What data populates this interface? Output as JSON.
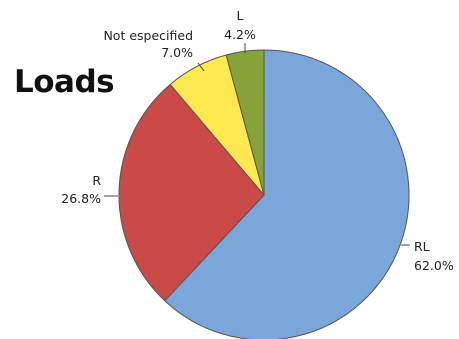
{
  "chart_data": {
    "type": "pie",
    "title": "Loads",
    "slices": [
      {
        "label": "RL",
        "value": 62.0,
        "pct_label": "62.0%",
        "color": "#7ba6d9"
      },
      {
        "label": "R",
        "value": 26.8,
        "pct_label": "26.8%",
        "color": "#c94a46"
      },
      {
        "label": "Not especified",
        "value": 7.0,
        "pct_label": "7.0%",
        "color": "#fde94f"
      },
      {
        "label": "L",
        "value": 4.2,
        "pct_label": "4.2%",
        "color": "#86a33a"
      }
    ],
    "start_angle_deg": 0,
    "direction": "clockwise",
    "edge_color": "#555555"
  }
}
